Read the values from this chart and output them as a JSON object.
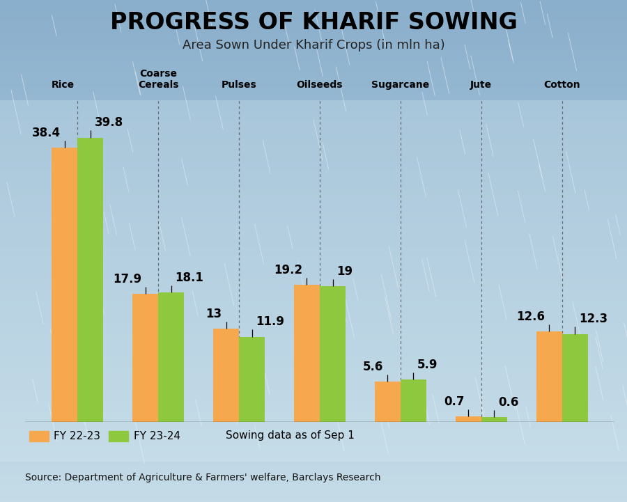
{
  "title": "PROGRESS OF KHARIF SOWING",
  "subtitle": "Area Sown Under Kharif Crops (in mln ha)",
  "categories": [
    "Rice",
    "Coarse\nCereals",
    "Pulses",
    "Oilseeds",
    "Sugarcane",
    "Jute",
    "Cotton"
  ],
  "cat_labels_single": [
    "Rice",
    "Coarse\nCereals",
    "Pulses",
    "Oilseeds",
    "Sugarcane",
    "Jute",
    "Cotton"
  ],
  "fy2223": [
    38.4,
    17.9,
    13.0,
    19.2,
    5.6,
    0.7,
    12.6
  ],
  "fy2324": [
    39.8,
    18.1,
    11.9,
    19.0,
    5.9,
    0.6,
    12.3
  ],
  "color_2223": "#F5A84E",
  "color_2324": "#8DC83F",
  "bg_color": "#B5CEE0",
  "bg_color_light": "#C8DCE8",
  "source": "Source: Department of Agriculture & Farmers' welfare, Barclays Research",
  "legend_note": "Sowing data as of Sep 1",
  "ylim": [
    0,
    45
  ],
  "bar_width": 0.32,
  "title_fontsize": 24,
  "subtitle_fontsize": 13,
  "value_fontsize": 12,
  "cat_fontsize": 10,
  "source_fontsize": 10
}
